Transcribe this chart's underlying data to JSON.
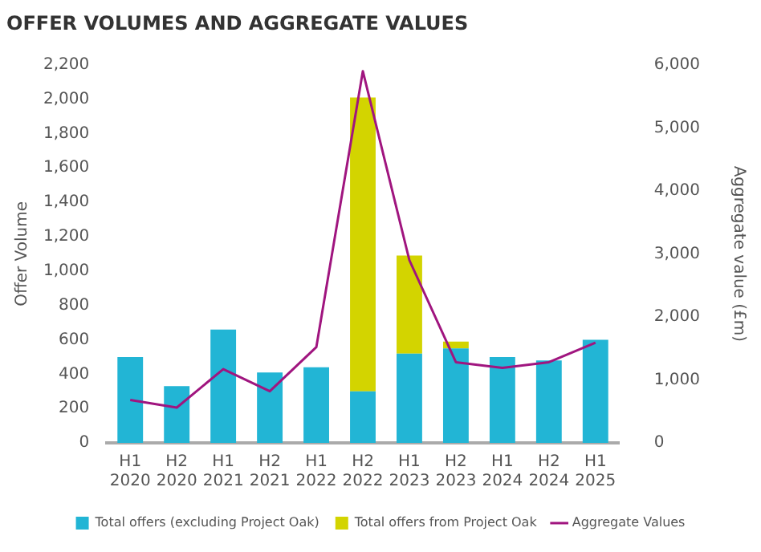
{
  "chart_data": {
    "type": "bar",
    "title": "OFFER VOLUMES AND AGGREGATE VALUES",
    "ylabel": "Offer Volume",
    "y2label": "Aggregate value (£m)",
    "categories": [
      "H1 2020",
      "H2 2020",
      "H1 2021",
      "H2 2021",
      "H1 2022",
      "H2 2022",
      "H1 2023",
      "H2 2023",
      "H1 2024",
      "H2 2024",
      "H1 2025"
    ],
    "stacked": true,
    "series": [
      {
        "name": "Total offers (excluding Project Oak)",
        "color": "#22b5d5",
        "values": [
          500,
          330,
          660,
          410,
          440,
          300,
          520,
          550,
          500,
          480,
          600
        ]
      },
      {
        "name": "Total offers from Project Oak",
        "color": "#d3d400",
        "values": [
          null,
          null,
          null,
          null,
          null,
          1710,
          570,
          40,
          null,
          null,
          null
        ]
      },
      {
        "name": "Aggregate Values",
        "type": "line",
        "axis": "y2",
        "color": "#a0157f",
        "values": [
          680,
          560,
          1170,
          820,
          1520,
          5900,
          2900,
          1280,
          1190,
          1280,
          1590
        ]
      }
    ],
    "ylim": [
      0,
      2200
    ],
    "yticks": [
      {
        "value": 0,
        "label": "0"
      },
      {
        "value": 200,
        "label": "200"
      },
      {
        "value": 400,
        "label": "400"
      },
      {
        "value": 600,
        "label": "600"
      },
      {
        "value": 800,
        "label": "800"
      },
      {
        "value": 1000,
        "label": "1,000"
      },
      {
        "value": 1200,
        "label": "1,200"
      },
      {
        "value": 1400,
        "label": "1,400"
      },
      {
        "value": 1600,
        "label": "1,600"
      },
      {
        "value": 1800,
        "label": "1,800"
      },
      {
        "value": 2000,
        "label": "2,000"
      },
      {
        "value": 2200,
        "label": "2,200"
      }
    ],
    "y2lim": [
      0,
      6000
    ],
    "y2ticks": [
      {
        "value": 0,
        "label": "0"
      },
      {
        "value": 1000,
        "label": "1,000"
      },
      {
        "value": 2000,
        "label": "2,000"
      },
      {
        "value": 3000,
        "label": "3,000"
      },
      {
        "value": 4000,
        "label": "4,000"
      },
      {
        "value": 5000,
        "label": "5,000"
      },
      {
        "value": 6000,
        "label": "6,000"
      }
    ],
    "grid": false,
    "legend": "bottom",
    "marker": "none",
    "line_style": "solid"
  }
}
